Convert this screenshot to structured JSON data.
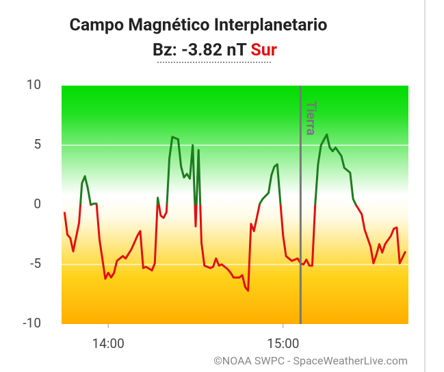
{
  "chart_data": {
    "type": "line",
    "title": "Campo Magnético Interplanetario",
    "subtitle": {
      "prefix": "Bz:",
      "value": -3.82,
      "value_label": "-3.82 nT",
      "direction": "Sur"
    },
    "credit": "©NOAA SWPC - SpaceWeatherLive.com",
    "x": [
      "13:45",
      "13:46",
      "13:47",
      "13:48",
      "13:50",
      "13:51",
      "13:52",
      "13:53",
      "13:54",
      "13:55",
      "13:56",
      "13:57",
      "13:59",
      "14:00",
      "14:01",
      "14:02",
      "14:03",
      "14:05",
      "14:06",
      "14:08",
      "14:10",
      "14:11",
      "14:12",
      "14:13",
      "14:15",
      "14:16",
      "14:17",
      "14:18",
      "14:19",
      "14:20",
      "14:21",
      "14:22",
      "14:23",
      "14:24",
      "14:25",
      "14:26",
      "14:27",
      "14:28",
      "14:29",
      "14:30",
      "14:31",
      "14:32",
      "14:33",
      "14:35",
      "14:36",
      "14:37",
      "14:38",
      "14:39",
      "14:41",
      "14:42",
      "14:43",
      "14:45",
      "14:46",
      "14:47",
      "14:48",
      "14:49",
      "14:50",
      "14:52",
      "14:53",
      "14:55",
      "14:56",
      "14:57",
      "14:58",
      "15:00",
      "15:01",
      "15:02",
      "15:03",
      "15:05",
      "15:06",
      "15:07",
      "15:08",
      "15:09",
      "15:10",
      "15:11",
      "15:12",
      "15:13",
      "15:15",
      "15:16",
      "15:17",
      "15:18",
      "15:20",
      "15:21",
      "15:23",
      "15:24",
      "15:25",
      "15:27",
      "15:28",
      "15:30",
      "15:31",
      "15:32",
      "15:33",
      "15:34",
      "15:35",
      "15:37",
      "15:38",
      "15:39",
      "15:40",
      "15:41",
      "15:42"
    ],
    "series": [
      {
        "name": "Bz",
        "color_positive": "#1f7a1f",
        "color_negative": "#e01010",
        "values": [
          -0.6,
          -2.5,
          -2.8,
          -3.9,
          -1.5,
          1.8,
          2.4,
          1.4,
          0,
          0.1,
          0.1,
          -2.9,
          -6.2,
          -5.7,
          -6.1,
          -5.7,
          -4.7,
          -4.3,
          -4.5,
          -3.7,
          -2.6,
          -2.2,
          -5.3,
          -5.2,
          -5.5,
          -4.9,
          0.6,
          -0.9,
          -1.1,
          -0.6,
          3.9,
          5.7,
          5.6,
          5.5,
          3.2,
          2.3,
          2.6,
          2.2,
          5.0,
          -1.8,
          4.6,
          -3.2,
          -5.1,
          -5.3,
          -5.2,
          -4.5,
          -5.1,
          -5.0,
          -5.4,
          -5.7,
          -6.1,
          -6.1,
          -5.9,
          -6.9,
          -7.2,
          -1.6,
          -2.2,
          0.1,
          0.5,
          1.0,
          2.5,
          3.2,
          3.4,
          -2.6,
          -4.3,
          -4.5,
          -4.7,
          -4.5,
          -4.9,
          -5.0,
          -4.6,
          -5.1,
          -5.1,
          0,
          3.4,
          5.0,
          5.9,
          4.8,
          4.5,
          4.8,
          4.1,
          3.1,
          2.7,
          0.5,
          0,
          -0.8,
          -2.1,
          -3.5,
          -4.9,
          -4.2,
          -3.3,
          -4.0,
          -3.3,
          -2.6,
          -2.0,
          -1.9,
          -4.9,
          -4.4,
          -3.9
        ]
      }
    ],
    "xlim": [
      "13:44",
      "15:43"
    ],
    "xticks": [
      "14:00",
      "15:00"
    ],
    "ylim": [
      -10,
      10
    ],
    "yticks": [
      10,
      5,
      0,
      -5,
      -10
    ],
    "grid": true,
    "annotations": [
      {
        "label": "Tierra",
        "x": "15:06"
      }
    ]
  }
}
